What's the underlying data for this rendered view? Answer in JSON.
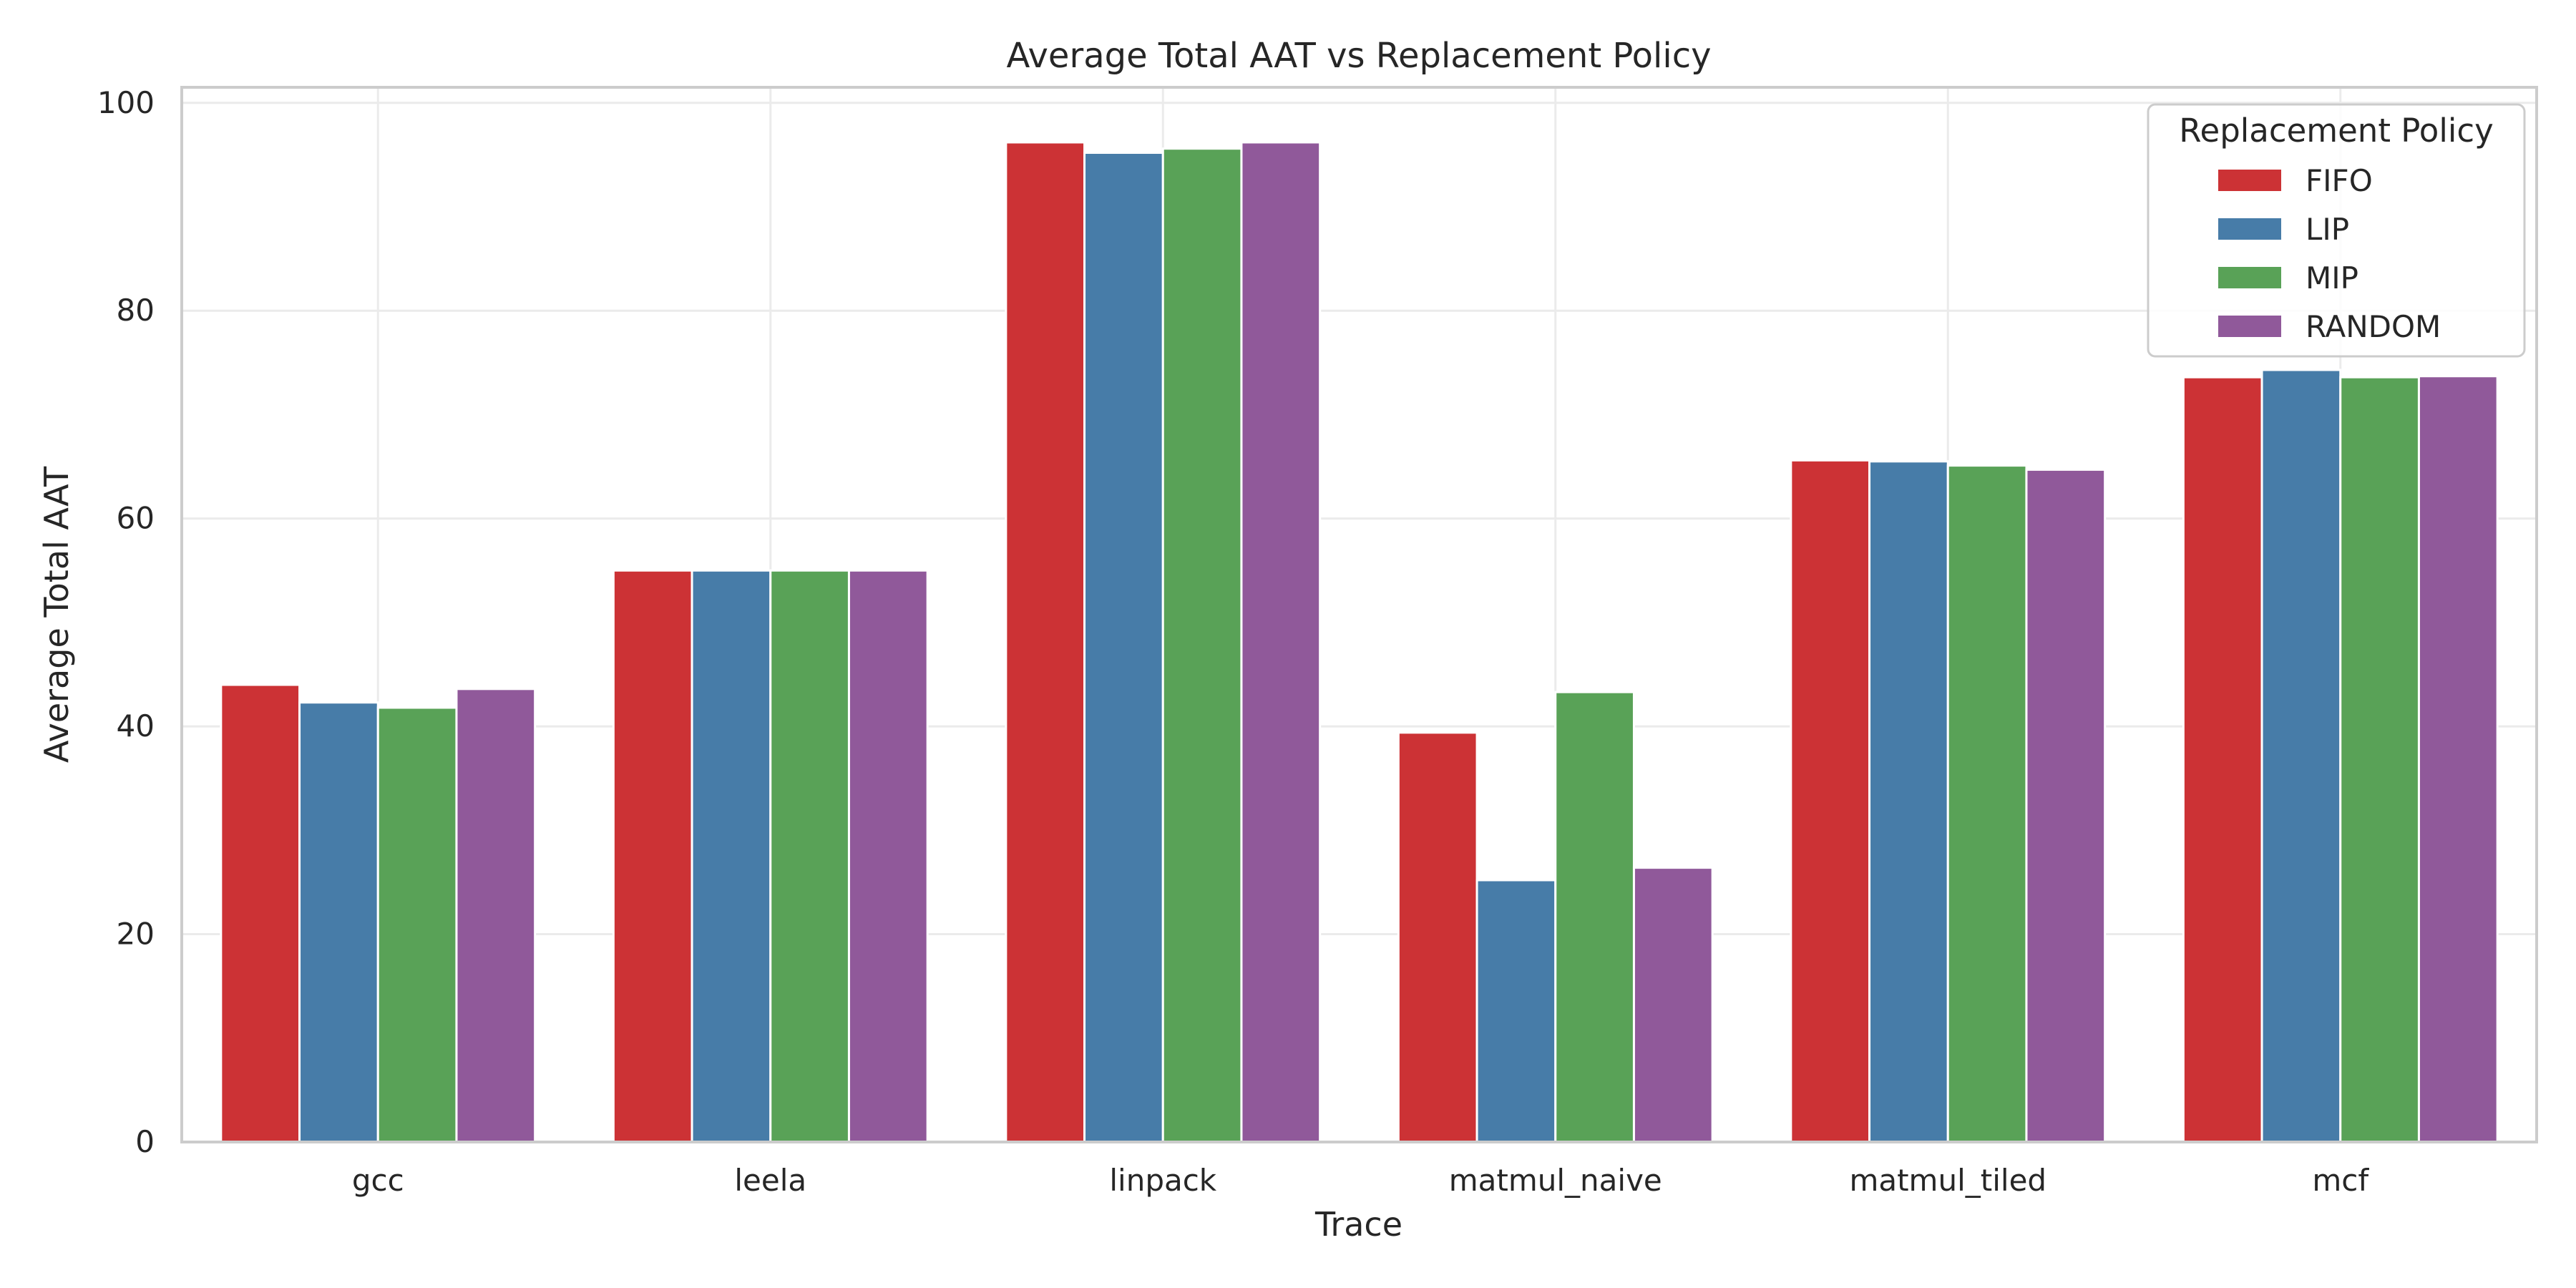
{
  "chart_data": {
    "type": "bar",
    "title": "Average Total AAT vs Replacement Policy",
    "xlabel": "Trace",
    "ylabel": "Average Total AAT",
    "categories": [
      "gcc",
      "leela",
      "linpack",
      "matmul_naive",
      "matmul_tiled",
      "mcf"
    ],
    "ylim": [
      0,
      101.5
    ],
    "yticks": [
      0,
      20,
      40,
      60,
      80,
      100
    ],
    "grid": true,
    "legend": {
      "title": "Replacement Policy",
      "placement": "top-right"
    },
    "series": [
      {
        "name": "FIFO",
        "color": "#cc3235",
        "values": [
          44.0,
          55.0,
          96.2,
          39.4,
          65.6,
          73.6
        ]
      },
      {
        "name": "LIP",
        "color": "#477ca8",
        "values": [
          42.3,
          55.0,
          95.2,
          25.2,
          65.5,
          74.3
        ]
      },
      {
        "name": "MIP",
        "color": "#59a257",
        "values": [
          41.8,
          55.0,
          95.6,
          43.3,
          65.1,
          73.6
        ]
      },
      {
        "name": "RANDOM",
        "color": "#90599a",
        "values": [
          43.6,
          55.0,
          96.2,
          26.4,
          64.7,
          73.7
        ]
      }
    ]
  }
}
